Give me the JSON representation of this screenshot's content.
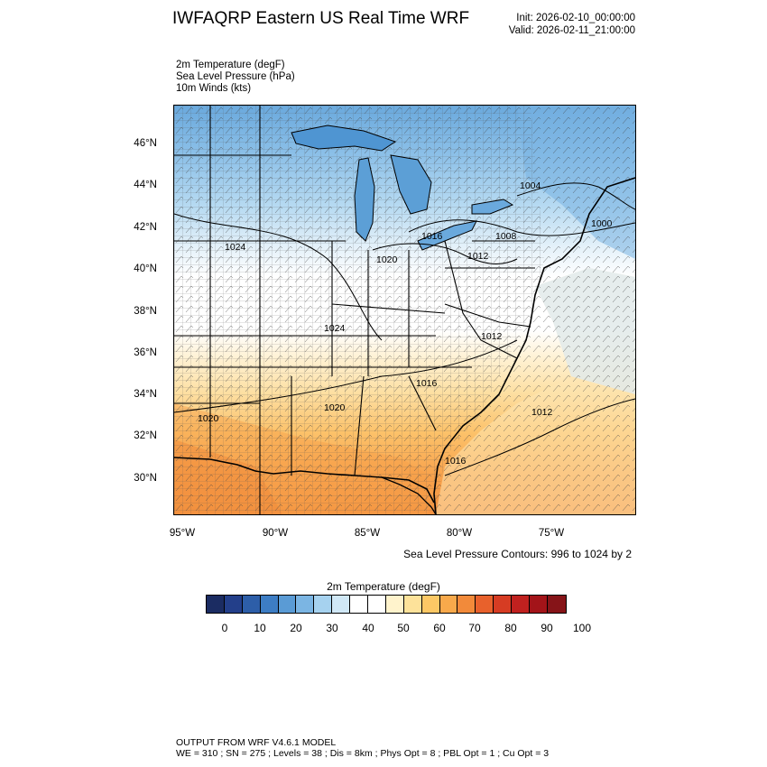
{
  "header": {
    "title": "IWFAQRP Eastern US Real Time WRF",
    "init": "Init: 2026-02-10_00:00:00",
    "valid": "Valid: 2026-02-11_21:00:00"
  },
  "fields": [
    "2m Temperature   (degF)",
    "Sea Level Pressure   (hPa)",
    "10m Winds   (kts)"
  ],
  "map": {
    "lat_labels": [
      "46°N",
      "44°N",
      "42°N",
      "40°N",
      "38°N",
      "36°N",
      "34°N",
      "32°N",
      "30°N"
    ],
    "lon_labels": [
      "95°W",
      "90°W",
      "85°W",
      "80°W",
      "75°W"
    ],
    "isobar_labels": [
      "1024",
      "1020",
      "1016",
      "1012",
      "1008",
      "1004",
      "1000",
      "1024",
      "1012",
      "1016",
      "1020",
      "1020",
      "1012",
      "1016"
    ]
  },
  "slp_caption": "Sea Level Pressure Contours: 996 to 1024 by 2",
  "colorbar": {
    "title": "2m Temperature  (degF)",
    "colors": [
      "#1b2c62",
      "#233f8a",
      "#2d5ea8",
      "#3d7dc4",
      "#5a9bd5",
      "#7bb5e3",
      "#a6d2ef",
      "#d0e8f6",
      "#ffffff",
      "#ffffff",
      "#fff3cc",
      "#fde29a",
      "#fcc865",
      "#f8a94b",
      "#f28a3a",
      "#e8612c",
      "#d63c23",
      "#c0211f",
      "#a31419",
      "#861418"
    ],
    "tick_labels": [
      "0",
      "10",
      "20",
      "30",
      "40",
      "50",
      "60",
      "70",
      "80",
      "90",
      "100"
    ]
  },
  "footer": {
    "line1": "OUTPUT FROM WRF V4.6.1 MODEL",
    "line2": "WE = 310 ; SN = 275 ; Levels = 38 ; Dis = 8km ; Phys Opt = 8 ; PBL Opt = 1 ; Cu Opt = 3"
  }
}
